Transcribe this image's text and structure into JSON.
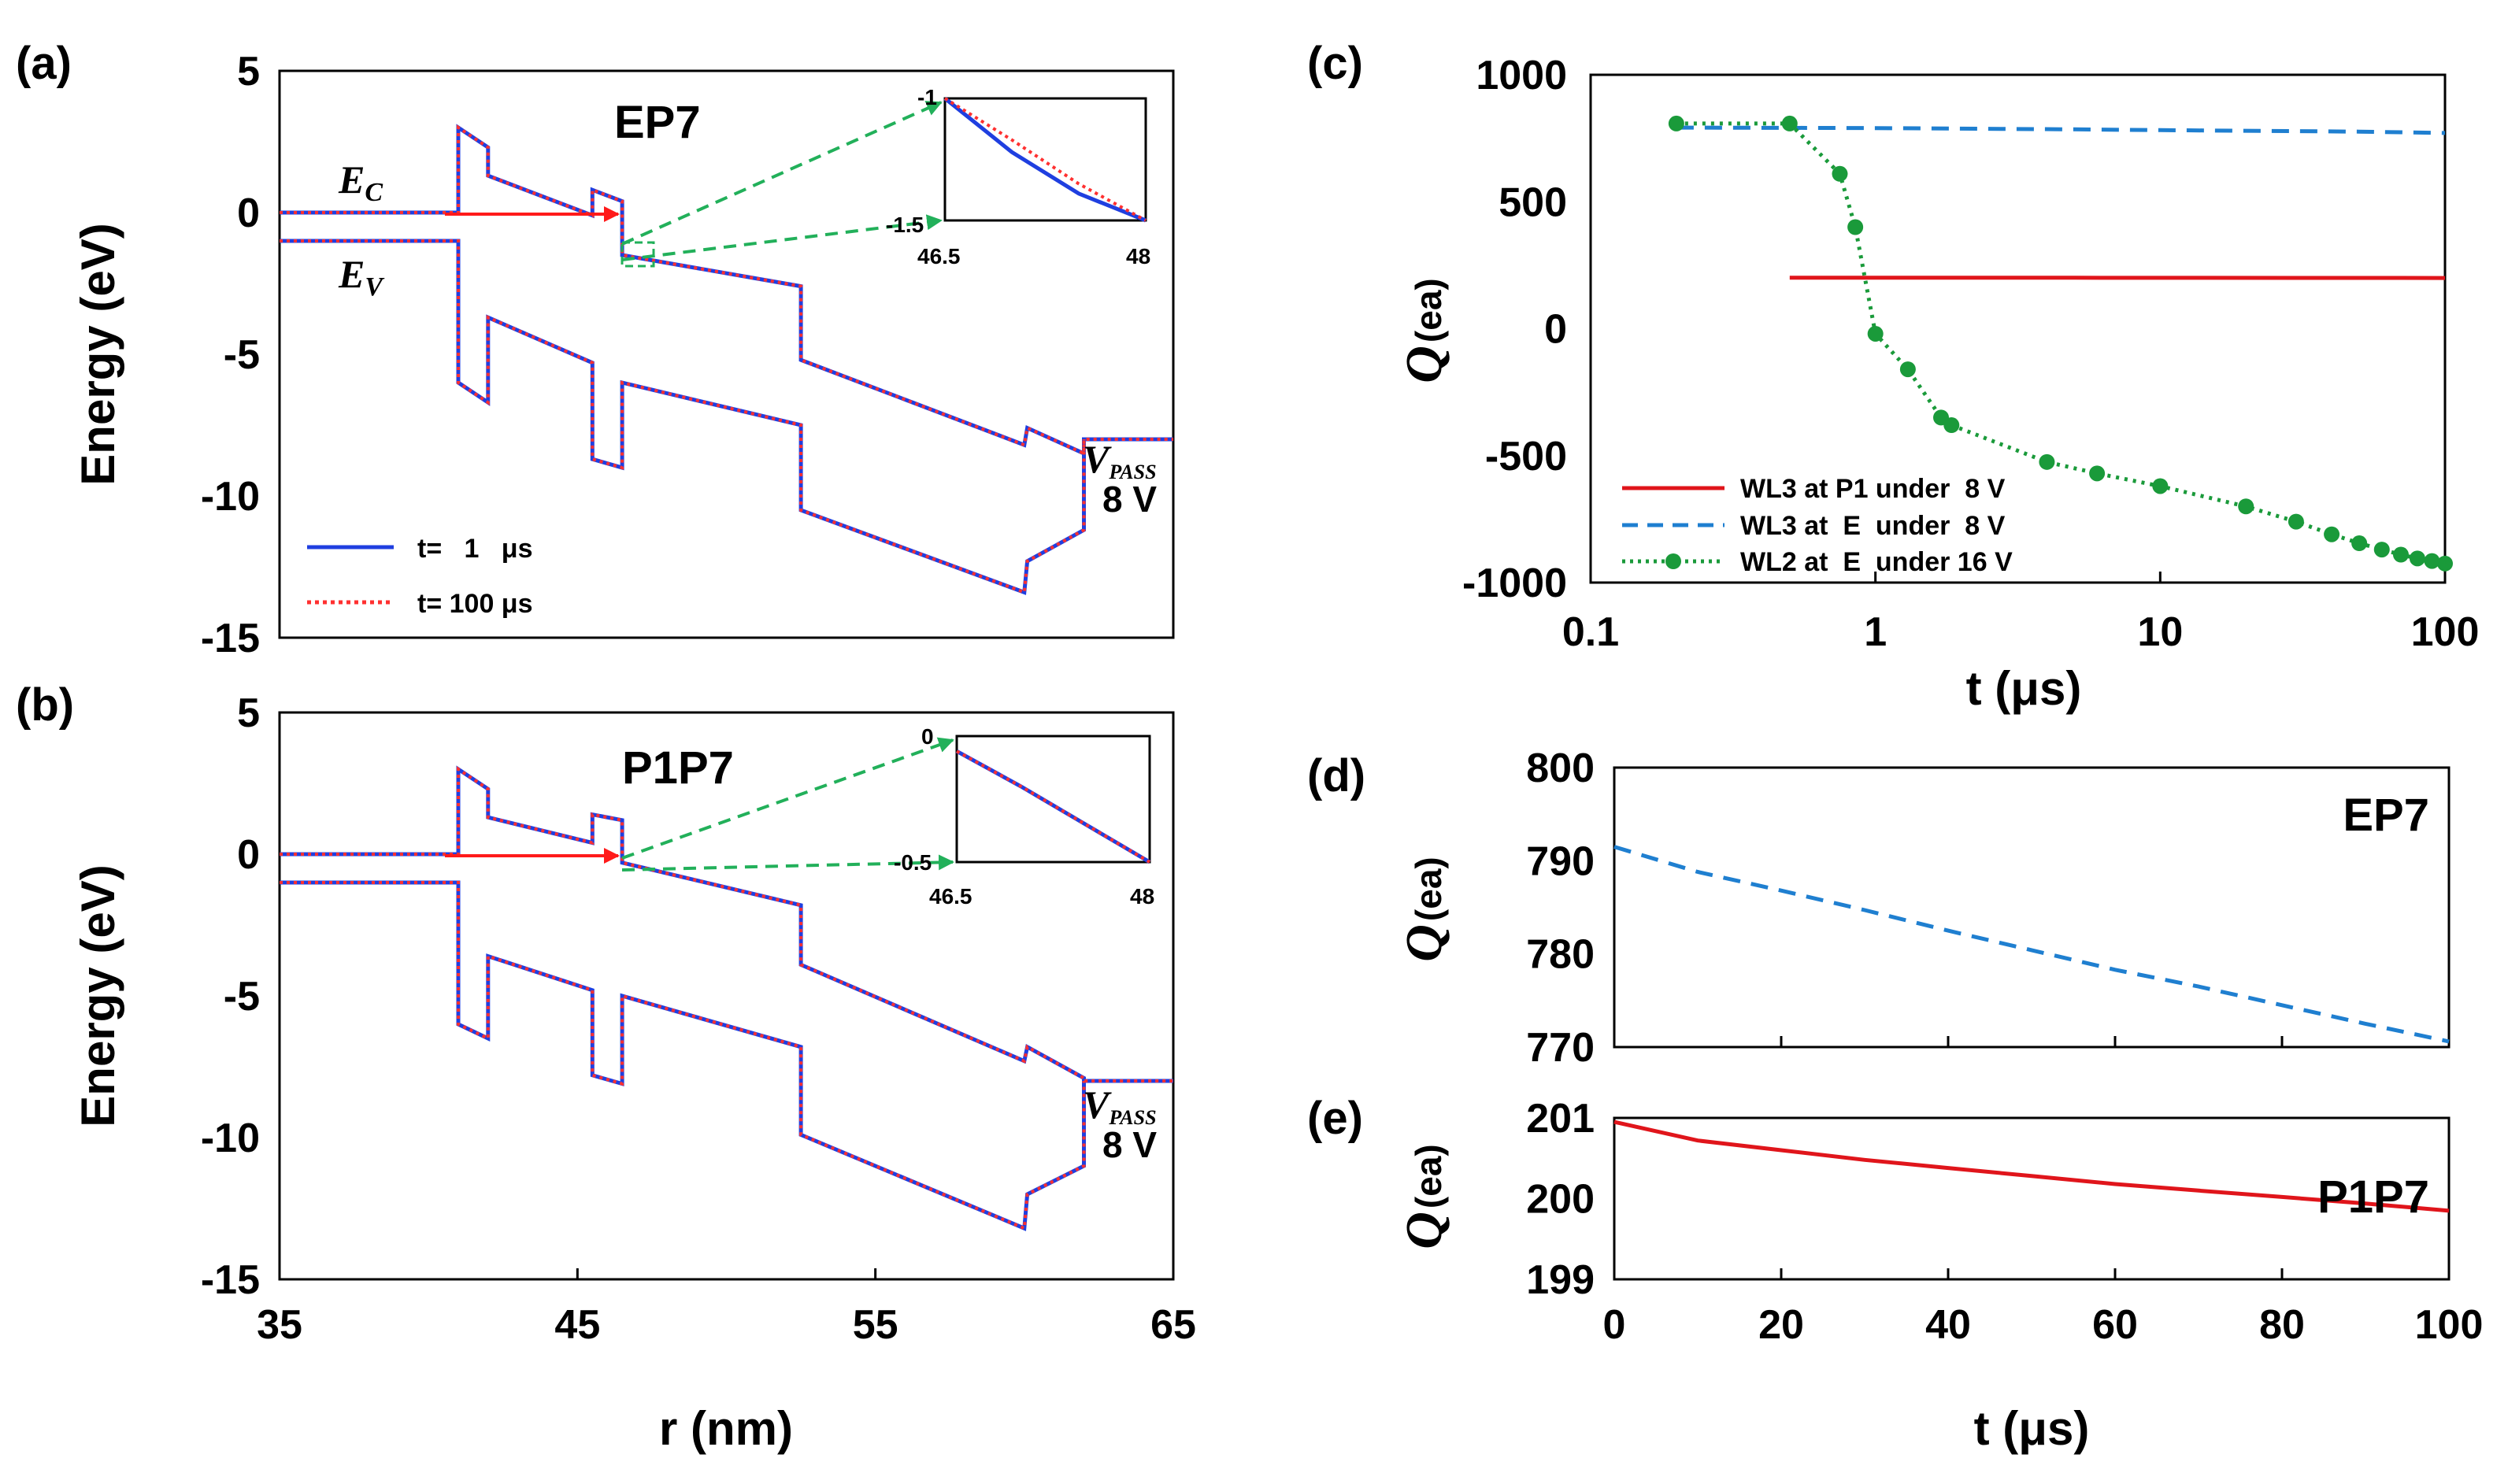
{
  "figure": {
    "panel_labels": [
      "(a)",
      "(b)",
      "(c)",
      "(d)",
      "(e)"
    ]
  },
  "colors": {
    "blue_solid": "#1f3fe0",
    "red_dotted": "#ff3030",
    "red_line": "#e0151b",
    "blue_dashed": "#1f7fd0",
    "green_dotted": "#1a9a3a",
    "green_arrow": "#22b05a",
    "red_arrow": "#ff1a1a"
  },
  "chart_data": [
    {
      "id": "a",
      "type": "line",
      "title": "EP7",
      "xlabel": "",
      "ylabel": "Energy (eV)",
      "xlim": [
        35,
        65
      ],
      "ylim": [
        -15,
        5
      ],
      "yticks": [
        5,
        0,
        -5,
        -10,
        -15
      ],
      "xticks": [],
      "labels": {
        "ec": "E",
        "ec_sub": "C",
        "ev": "E",
        "ev_sub": "V",
        "vpass": "V",
        "vpass_sub": "PASS",
        "vpass_value": "8 V"
      },
      "legend": {
        "position": "bottom-left",
        "entries": [
          "t=   1   μs",
          "t= 100 μs"
        ]
      },
      "series": [
        {
          "name": "t=   1   μs",
          "style": "solid",
          "x": [
            35,
            41,
            41,
            42,
            42,
            45.5,
            45.5,
            46.5,
            46.5,
            52.5,
            52.5,
            60,
            60.1,
            62,
            62,
            65
          ],
          "y": [
            0,
            0,
            3,
            2.3,
            1.3,
            -0.1,
            0.8,
            0.4,
            -1.5,
            -2.6,
            -5.2,
            -8.2,
            -7.6,
            -8.5,
            -8,
            -8
          ]
        },
        {
          "name": "t=   1   μs",
          "style": "solid",
          "x": [
            35,
            41,
            41,
            42,
            42,
            45.5,
            45.5,
            46.5,
            46.5,
            52.5,
            52.5,
            60,
            60.1,
            62,
            62
          ],
          "y": [
            -1,
            -1,
            -6,
            -6.7,
            -3.7,
            -5.3,
            -8.7,
            -9,
            -6,
            -7.5,
            -10.5,
            -13.4,
            -12.3,
            -11.2,
            -8
          ]
        },
        {
          "name": "t= 100 μs",
          "style": "dotted",
          "x": [
            35,
            41,
            41,
            42,
            42,
            45.5,
            45.5,
            46.5,
            46.5,
            52.5,
            52.5,
            60,
            60.1,
            62,
            62,
            65
          ],
          "y": [
            0,
            0,
            3,
            2.3,
            1.3,
            -0.1,
            0.8,
            0.4,
            -1.5,
            -2.6,
            -5.2,
            -8.2,
            -7.6,
            -8.5,
            -8,
            -8
          ]
        },
        {
          "name": "t= 100 μs",
          "style": "dotted",
          "x": [
            35,
            41,
            41,
            42,
            42,
            45.5,
            45.5,
            46.5,
            46.5,
            52.5,
            52.5,
            60,
            60.1,
            62,
            62
          ],
          "y": [
            -1,
            -1,
            -6,
            -6.7,
            -3.7,
            -5.3,
            -8.7,
            -9,
            -6,
            -7.5,
            -10.5,
            -13.4,
            -12.3,
            -11.2,
            -8
          ]
        }
      ],
      "inset": {
        "xlim": [
          46.5,
          48
        ],
        "ylim": [
          -1.5,
          -1
        ],
        "xtick_labels": [
          "46.5",
          "48"
        ],
        "ytick_labels": [
          "-1",
          "-1.5"
        ],
        "series": [
          {
            "style": "solid",
            "x": [
              46.5,
              47,
              47.5,
              48
            ],
            "y": [
              -1,
              -1.22,
              -1.39,
              -1.5
            ]
          },
          {
            "style": "dotted",
            "x": [
              46.5,
              47,
              47.5,
              48
            ],
            "y": [
              -1,
              -1.17,
              -1.35,
              -1.5
            ]
          }
        ]
      }
    },
    {
      "id": "b",
      "type": "line",
      "title": "P1P7",
      "xlabel": "r (nm)",
      "ylabel": "Energy (eV)",
      "xlim": [
        35,
        65
      ],
      "ylim": [
        -15,
        5
      ],
      "yticks": [
        5,
        0,
        -5,
        -10,
        -15
      ],
      "xticks": [
        35,
        45,
        55,
        65
      ],
      "labels": {
        "vpass": "V",
        "vpass_sub": "PASS",
        "vpass_value": "8 V"
      },
      "series": [
        {
          "name": "t=   1   μs",
          "style": "solid",
          "x": [
            35,
            41,
            41,
            42,
            42,
            45.5,
            45.5,
            46.5,
            46.5,
            52.5,
            52.5,
            60,
            60.1,
            62,
            62,
            65
          ],
          "y": [
            0,
            0,
            3,
            2.3,
            1.3,
            0.4,
            1.4,
            1.2,
            -0.3,
            -1.8,
            -3.9,
            -7.3,
            -6.8,
            -7.9,
            -8,
            -8
          ]
        },
        {
          "name": "t=   1   μs",
          "style": "solid",
          "x": [
            35,
            41,
            41,
            42,
            42,
            45.5,
            45.5,
            46.5,
            46.5,
            52.5,
            52.5,
            60,
            60.1,
            62,
            62
          ],
          "y": [
            -1,
            -1,
            -6,
            -6.5,
            -3.6,
            -4.8,
            -7.8,
            -8.1,
            -5,
            -6.8,
            -9.9,
            -13.2,
            -12,
            -11,
            -8
          ]
        },
        {
          "name": "t= 100 μs",
          "style": "dotted",
          "x": [
            35,
            41,
            41,
            42,
            42,
            45.5,
            45.5,
            46.5,
            46.5,
            52.5,
            52.5,
            60,
            60.1,
            62,
            62,
            65
          ],
          "y": [
            0,
            0,
            3,
            2.3,
            1.3,
            0.4,
            1.4,
            1.2,
            -0.3,
            -1.8,
            -3.9,
            -7.3,
            -6.8,
            -7.9,
            -8,
            -8
          ]
        },
        {
          "name": "t= 100 μs",
          "style": "dotted",
          "x": [
            35,
            41,
            41,
            42,
            42,
            45.5,
            45.5,
            46.5,
            46.5,
            52.5,
            52.5,
            60,
            60.1,
            62,
            62
          ],
          "y": [
            -1,
            -1,
            -6,
            -6.5,
            -3.6,
            -4.8,
            -7.8,
            -8.1,
            -5,
            -6.8,
            -9.9,
            -13.2,
            -12,
            -11,
            -8
          ]
        }
      ],
      "inset": {
        "xlim": [
          46.5,
          48
        ],
        "ylim": [
          -0.5,
          0
        ],
        "xtick_labels": [
          "46.5",
          "48"
        ],
        "ytick_labels": [
          "0",
          "-0.5"
        ],
        "series": [
          {
            "style": "solid",
            "x": [
              46.5,
              47,
              47.5,
              48
            ],
            "y": [
              -0.06,
              -0.2,
              -0.35,
              -0.5
            ]
          },
          {
            "style": "dotted",
            "x": [
              46.5,
              47,
              47.5,
              48
            ],
            "y": [
              -0.06,
              -0.2,
              -0.35,
              -0.5
            ]
          }
        ]
      }
    },
    {
      "id": "c",
      "type": "line",
      "title": "",
      "xlabel": "t (μs)",
      "ylabel": "Q",
      "ylabel_unit": "(ea)",
      "xscale": "log",
      "xlim": [
        0.1,
        100
      ],
      "ylim": [
        -1000,
        1000
      ],
      "xticks": [
        0.1,
        1,
        10,
        100
      ],
      "xtick_labels": [
        "0.1",
        "1",
        "10",
        "100"
      ],
      "yticks": [
        1000,
        500,
        0,
        -500,
        -1000
      ],
      "legend": {
        "position": "bottom-left"
      },
      "series": [
        {
          "name": "WL3 at P1 under  8 V",
          "style": "solid",
          "x": [
            0.5,
            1,
            5,
            10,
            50,
            100
          ],
          "y": [
            201,
            200.9,
            200.5,
            200.3,
            199.9,
            199.6
          ]
        },
        {
          "name": "WL3 at  E  under  8 V",
          "style": "dashed",
          "x": [
            0.2,
            0.5,
            1,
            5,
            10,
            50,
            100
          ],
          "y": [
            792,
            791,
            790,
            785,
            782,
            776,
            771
          ]
        },
        {
          "name": "WL2 at  E  under 16 V",
          "style": "dotted-marker",
          "x": [
            0.2,
            0.5,
            0.75,
            0.85,
            1,
            1.3,
            1.7,
            1.85,
            4,
            6,
            10,
            20,
            30,
            40,
            50,
            60,
            70,
            80,
            90,
            100
          ],
          "y": [
            808,
            808,
            610,
            400,
            -20,
            -160,
            -350,
            -380,
            -525,
            -570,
            -620,
            -700,
            -760,
            -810,
            -845,
            -870,
            -890,
            -905,
            -915,
            -925
          ]
        }
      ]
    },
    {
      "id": "d",
      "type": "line",
      "title": "EP7",
      "xlabel": "",
      "ylabel": "Q",
      "ylabel_unit": "(ea)",
      "xlim": [
        0,
        100
      ],
      "ylim": [
        770,
        800
      ],
      "yticks": [
        800,
        790,
        780,
        770
      ],
      "series": [
        {
          "name": "",
          "style": "dashed",
          "x": [
            0,
            10,
            20,
            30,
            40,
            50,
            60,
            70,
            80,
            90,
            100
          ],
          "y": [
            791.5,
            788.8,
            786.8,
            784.7,
            782.5,
            780.4,
            778.3,
            776.5,
            774.5,
            772.5,
            770.6
          ]
        }
      ]
    },
    {
      "id": "e",
      "type": "line",
      "title": "P1P7",
      "xlabel": "t (μs)",
      "ylabel": "Q",
      "ylabel_unit": "(ea)",
      "xlim": [
        0,
        100
      ],
      "ylim": [
        199,
        201
      ],
      "yticks": [
        201,
        200,
        199
      ],
      "xticks": [
        0,
        20,
        40,
        60,
        80,
        100
      ],
      "series": [
        {
          "name": "",
          "style": "solid",
          "x": [
            0,
            10,
            20,
            30,
            40,
            50,
            60,
            70,
            80,
            90,
            100
          ],
          "y": [
            200.95,
            200.72,
            200.6,
            200.48,
            200.38,
            200.28,
            200.18,
            200.1,
            200.02,
            199.94,
            199.85
          ]
        }
      ]
    }
  ]
}
